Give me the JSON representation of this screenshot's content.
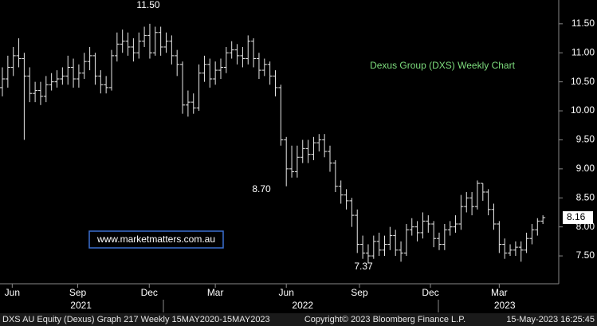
{
  "chart_data": {
    "type": "ohlc",
    "title": "Dexus Group (DXS) Weekly Chart",
    "title_color": "#7ddc7d",
    "watermark": "www.marketmatters.com.au",
    "annotations": [
      "11.50",
      "8.70",
      "7.37"
    ],
    "last_price": 8.16,
    "footer_left": "DXS AU Equity (Dexus) Graph 217  Weekly 15MAY2020-15MAY2023",
    "footer_center": "Copyright© 2023 Bloomberg Finance L.P.",
    "footer_right": "15-May-2023 16:25:45",
    "color": "#e8e8e8",
    "ylim": [
      7.02,
      11.91
    ],
    "yticks": [
      {
        "value": 7.5,
        "label": "7.50"
      },
      {
        "value": 8,
        "label": "8.00"
      },
      {
        "value": 8.5,
        "label": "8.50"
      },
      {
        "value": 9,
        "label": "9.00"
      },
      {
        "value": 9.5,
        "label": "9.50"
      },
      {
        "value": 10,
        "label": "10.00"
      },
      {
        "value": 10.5,
        "label": "10.50"
      },
      {
        "value": 11,
        "label": "11.00"
      },
      {
        "value": 11.5,
        "label": "11.50"
      }
    ],
    "xticks": [
      {
        "value": 1.8,
        "label": "Jun"
      },
      {
        "value": 13.8,
        "label": "Sep"
      },
      {
        "value": 26.9,
        "label": "Dec"
      },
      {
        "value": 39,
        "label": "Mar"
      },
      {
        "value": 52,
        "label": "Jun"
      },
      {
        "value": 65.4,
        "label": "Sep"
      },
      {
        "value": 78.4,
        "label": "Dec"
      },
      {
        "value": 91,
        "label": "Mar"
      }
    ],
    "year_ticks": [
      {
        "value": 14.4,
        "label": "2021"
      },
      {
        "value": 55,
        "label": "2022"
      },
      {
        "value": 92,
        "label": "2023"
      }
    ],
    "open": [
      10.4,
      10.55,
      10.75,
      10.95,
      10.9,
      10.6,
      10.3,
      10.35,
      10.25,
      10.45,
      10.5,
      10.55,
      10.6,
      10.75,
      10.55,
      10.65,
      10.85,
      10.95,
      10.6,
      10.45,
      10.4,
      10.95,
      11.15,
      11.2,
      11.1,
      11.0,
      11.2,
      11.3,
      11.0,
      11.35,
      11.1,
      11.2,
      10.95,
      10.8,
      10.1,
      10.15,
      10.05,
      10.65,
      10.8,
      10.55,
      10.7,
      10.75,
      11.0,
      11.05,
      10.95,
      10.9,
      11.2,
      10.9,
      10.7,
      10.8,
      10.6,
      10.4,
      9.5,
      9.0,
      8.95,
      9.2,
      9.35,
      9.25,
      9.45,
      9.5,
      9.3,
      9.1,
      8.7,
      8.55,
      8.45,
      8.2,
      7.7,
      7.55,
      7.5,
      7.75,
      7.6,
      7.7,
      7.85,
      7.6,
      7.55,
      7.95,
      8.0,
      7.9,
      8.1,
      8.05,
      7.8,
      7.7,
      7.95,
      8.0,
      8.05,
      8.35,
      8.5,
      8.35,
      8.75,
      8.6,
      8.3,
      8.05,
      7.7,
      7.55,
      7.6,
      7.65,
      7.6,
      7.8,
      7.95,
      8.1
    ],
    "high": [
      10.75,
      10.95,
      11.1,
      11.25,
      11.0,
      10.75,
      10.5,
      10.5,
      10.6,
      10.65,
      10.7,
      10.75,
      10.95,
      10.9,
      10.8,
      11.0,
      11.1,
      11.0,
      10.7,
      10.6,
      11.05,
      11.35,
      11.4,
      11.35,
      11.25,
      11.35,
      11.45,
      11.5,
      11.45,
      11.45,
      11.35,
      11.3,
      11.05,
      10.85,
      10.35,
      10.3,
      10.8,
      10.95,
      10.9,
      10.85,
      10.9,
      11.1,
      11.2,
      11.15,
      11.1,
      11.3,
      11.25,
      11.0,
      10.9,
      10.85,
      10.7,
      10.45,
      9.55,
      9.4,
      9.4,
      9.5,
      9.5,
      9.55,
      9.6,
      9.6,
      9.4,
      9.15,
      8.8,
      8.65,
      8.5,
      8.3,
      7.85,
      7.7,
      7.85,
      7.9,
      7.85,
      8.0,
      7.95,
      7.75,
      8.05,
      8.15,
      8.1,
      8.25,
      8.2,
      8.1,
      7.9,
      8.05,
      8.1,
      8.2,
      8.55,
      8.6,
      8.6,
      8.8,
      8.75,
      8.65,
      8.4,
      8.1,
      7.8,
      7.7,
      7.75,
      7.75,
      7.9,
      8.05,
      8.15,
      8.2
    ],
    "low": [
      10.25,
      10.4,
      10.6,
      10.75,
      9.5,
      10.15,
      10.15,
      10.1,
      10.15,
      10.35,
      10.4,
      10.45,
      10.45,
      10.4,
      10.4,
      10.55,
      10.7,
      10.45,
      10.3,
      10.3,
      10.35,
      10.85,
      11.0,
      10.95,
      10.85,
      10.9,
      11.1,
      10.9,
      10.95,
      10.95,
      11.0,
      10.8,
      10.6,
      9.95,
      9.9,
      9.95,
      10.0,
      10.5,
      10.4,
      10.45,
      10.55,
      10.65,
      10.9,
      10.8,
      10.75,
      10.8,
      10.75,
      10.55,
      10.6,
      10.45,
      10.25,
      9.4,
      8.7,
      8.85,
      8.85,
      9.1,
      9.1,
      9.15,
      9.3,
      9.2,
      8.95,
      8.6,
      8.4,
      8.3,
      8.0,
      7.55,
      7.45,
      7.37,
      7.45,
      7.5,
      7.5,
      7.6,
      7.5,
      7.4,
      7.5,
      7.85,
      7.75,
      7.8,
      7.9,
      7.65,
      7.6,
      7.6,
      7.85,
      7.9,
      7.95,
      8.25,
      8.2,
      8.3,
      8.45,
      8.2,
      7.95,
      7.55,
      7.45,
      7.5,
      7.5,
      7.4,
      7.55,
      7.7,
      7.85,
      8.05
    ],
    "close": [
      10.55,
      10.75,
      10.95,
      10.9,
      10.6,
      10.3,
      10.35,
      10.25,
      10.45,
      10.5,
      10.55,
      10.6,
      10.75,
      10.55,
      10.65,
      10.85,
      10.95,
      10.6,
      10.45,
      10.4,
      10.95,
      11.15,
      11.2,
      11.1,
      11.0,
      11.2,
      11.3,
      11.0,
      11.35,
      11.1,
      11.2,
      10.95,
      10.8,
      10.1,
      10.15,
      10.05,
      10.65,
      10.8,
      10.55,
      10.7,
      10.75,
      11.0,
      11.05,
      10.95,
      10.9,
      11.2,
      10.9,
      10.7,
      10.8,
      10.6,
      10.4,
      9.5,
      9.0,
      8.95,
      9.2,
      9.35,
      9.25,
      9.45,
      9.5,
      9.3,
      9.1,
      8.7,
      8.55,
      8.45,
      8.2,
      7.7,
      7.55,
      7.5,
      7.75,
      7.6,
      7.7,
      7.85,
      7.6,
      7.55,
      7.95,
      8.0,
      7.9,
      8.1,
      8.05,
      7.8,
      7.7,
      7.95,
      8.0,
      8.05,
      8.35,
      8.5,
      8.35,
      8.75,
      8.6,
      8.3,
      8.05,
      7.7,
      7.55,
      7.6,
      7.65,
      7.6,
      7.8,
      7.95,
      8.1,
      8.16
    ]
  }
}
